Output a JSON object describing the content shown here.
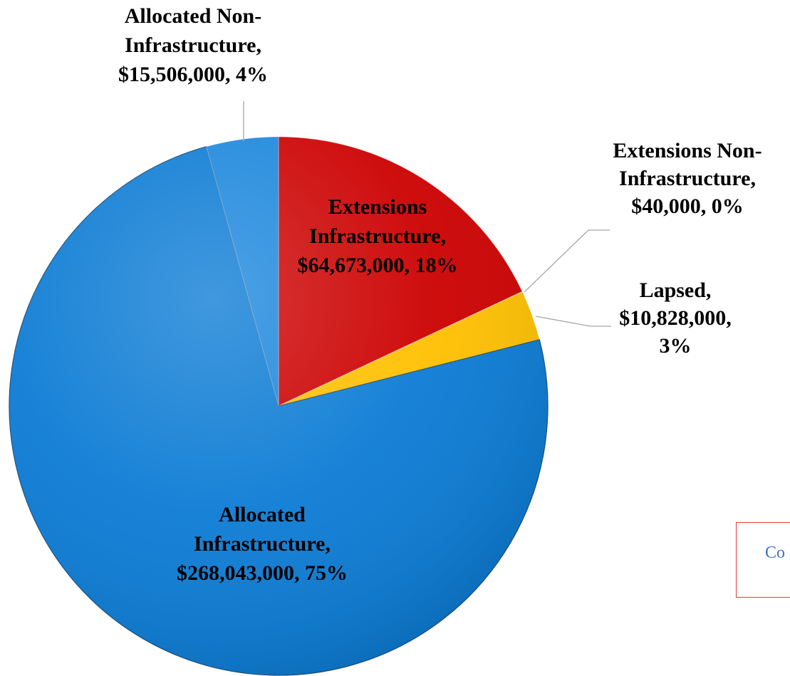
{
  "chart_data": {
    "type": "pie",
    "title": "",
    "slices": [
      {
        "category": "Extensions Infrastructure",
        "value": 64673000,
        "percent": 18,
        "label_lines": [
          "Extensions",
          "Infrastructure,",
          "$64,673,000, 18%"
        ],
        "color": "#cc0000"
      },
      {
        "category": "Extensions Non-Infrastructure",
        "value": 40000,
        "percent": 0,
        "label_lines": [
          "Extensions Non-",
          "Infrastructure,",
          "$40,000, 0%"
        ],
        "color": "#e06666"
      },
      {
        "category": "Lapsed",
        "value": 10828000,
        "percent": 3,
        "label_lines": [
          "Lapsed,",
          "$10,828,000,",
          "3%"
        ],
        "color": "#ffc000"
      },
      {
        "category": "Allocated Infrastructure",
        "value": 268043000,
        "percent": 75,
        "label_lines": [
          "Allocated",
          "Infrastructure,",
          "$268,043,000, 75%"
        ],
        "color": "#0b7bd4"
      },
      {
        "category": "Allocated Non-Infrastructure",
        "value": 15506000,
        "percent": 4,
        "label_lines": [
          "Allocated Non-",
          "Infrastructure,",
          "$15,506,000, 4%"
        ],
        "color": "#1a86dc"
      }
    ],
    "legend": "none",
    "data_labels": "category, value, percent"
  },
  "textbox": {
    "text": "Co"
  }
}
